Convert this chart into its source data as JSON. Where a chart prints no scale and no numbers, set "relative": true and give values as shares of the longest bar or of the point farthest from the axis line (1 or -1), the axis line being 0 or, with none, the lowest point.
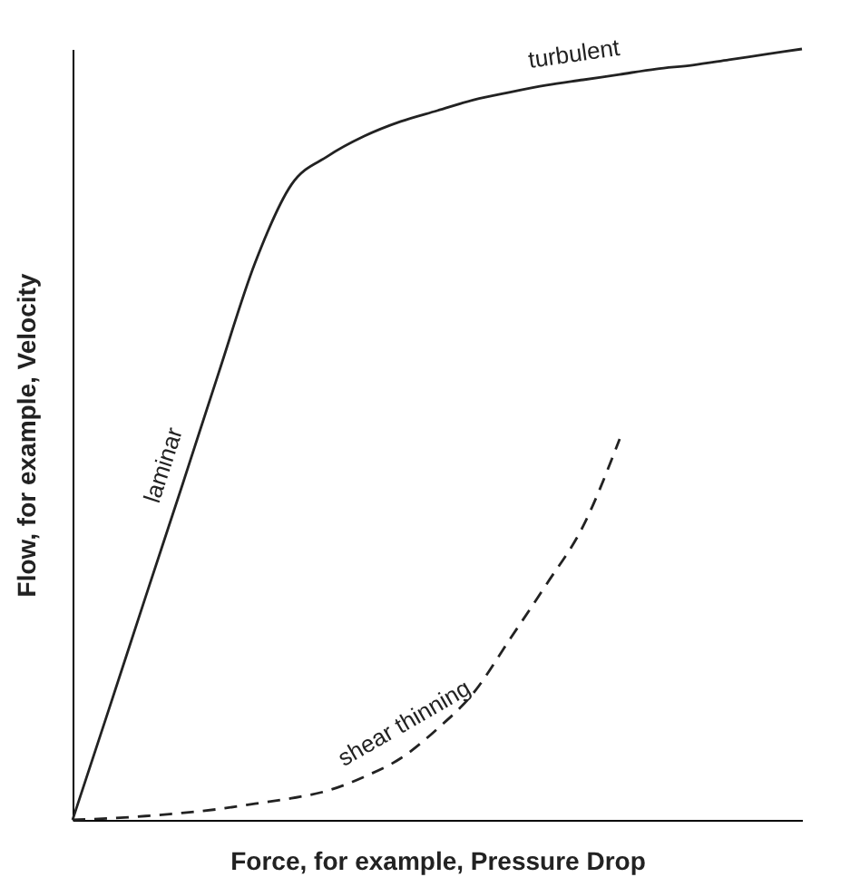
{
  "chart_data": {
    "type": "line",
    "relative": true,
    "xlabel": "Force, for example, Pressure Drop",
    "ylabel": "Flow, for example, Velocity",
    "categories": [
      null,
      null,
      null,
      null,
      null,
      null,
      null,
      null,
      null,
      null,
      null,
      null,
      null,
      null,
      null,
      null,
      null,
      null,
      null,
      null,
      null
    ],
    "series": [
      {
        "color": "#222222",
        "line_style": "solid",
        "values": [
          0,
          0.144,
          0.289,
          0.433,
          0.579,
          0.722,
          0.824,
          0.861,
          0.887,
          0.906,
          0.92,
          0.934,
          0.944,
          0.953,
          0.96,
          0.967,
          0.974,
          0.979,
          0.986,
          0.993,
          1
        ]
      },
      {
        "color": "#222222",
        "line_style": "dashed",
        "values": [
          0,
          0.002,
          0.005,
          0.009,
          0.014,
          0.021,
          0.028,
          0.038,
          0.056,
          0.08,
          0.118,
          0.165,
          0.235,
          0.306,
          0.381,
          0.494,
          null,
          null,
          null,
          null,
          null
        ]
      }
    ],
    "annotations": [
      "laminar",
      "turbulent",
      "shear thinning"
    ],
    "legend": false,
    "marker": "none",
    "tick_labels": false
  }
}
